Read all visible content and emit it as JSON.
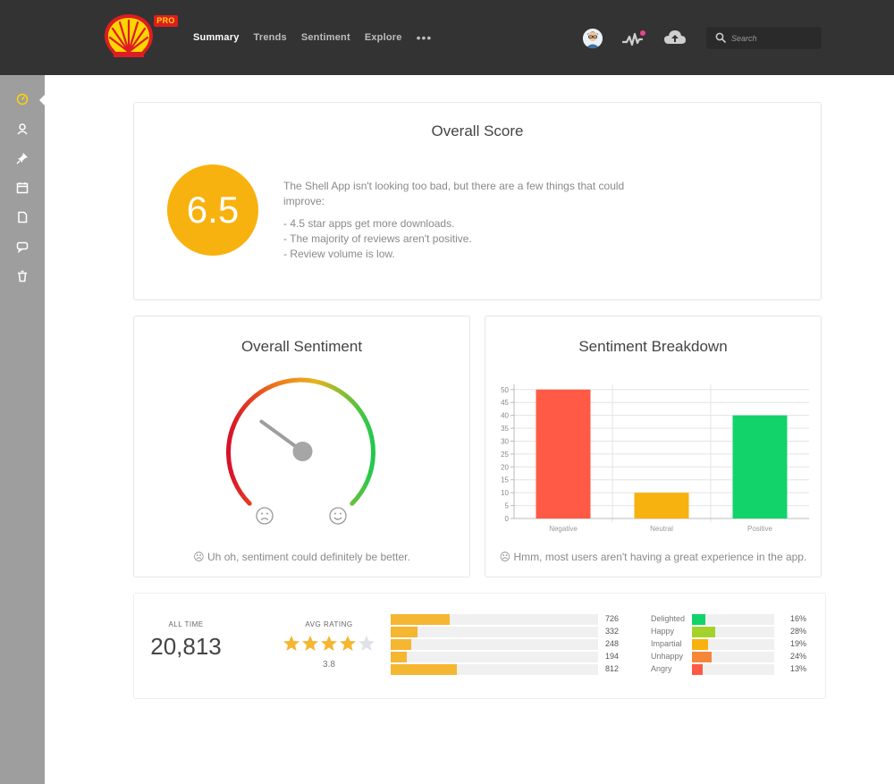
{
  "header": {
    "pro_badge": "PRO",
    "nav": [
      {
        "label": "Summary",
        "active": true
      },
      {
        "label": "Trends",
        "active": false
      },
      {
        "label": "Sentiment",
        "active": false
      },
      {
        "label": "Explore",
        "active": false
      }
    ],
    "more_label": "•••",
    "search_placeholder": "Search",
    "notification_color": "#e84393"
  },
  "sidebar": {
    "items": [
      "gauge-icon",
      "user-icon",
      "pin-icon",
      "calendar-icon",
      "document-icon",
      "chat-icon",
      "trash-icon"
    ],
    "active_index": 0,
    "active_color": "#ffd500"
  },
  "overall_score": {
    "title": "Overall Score",
    "score": "6.5",
    "summary": "The Shell App isn't looking too bad, but there are a few things that could improve:",
    "points": [
      "- 4.5 star apps get more downloads.",
      "- The majority of reviews aren't positive.",
      "- Review volume is low."
    ]
  },
  "overall_sentiment": {
    "title": "Overall Sentiment",
    "gauge_level": 0.3,
    "note": "☹ Uh oh, sentiment could definitely be better."
  },
  "sentiment_breakdown": {
    "title": "Sentiment Breakdown",
    "note": "☹ Hmm, most users aren't having a great experience in the app."
  },
  "chart_data": {
    "type": "bar",
    "categories": [
      "Negative",
      "Neutral",
      "Positive"
    ],
    "values": [
      50,
      10,
      40
    ],
    "colors": [
      "#ff5a45",
      "#f8b20f",
      "#12d36a"
    ],
    "yticks": [
      0,
      5,
      10,
      15,
      20,
      25,
      30,
      35,
      40,
      45,
      50
    ],
    "ylim": [
      0,
      52
    ],
    "grid": true
  },
  "stats": {
    "all_time_label": "ALL TIME",
    "all_time_value": "20,813",
    "avg_rating_label": "AVG RATING",
    "avg_rating_value": "3.8",
    "star_rating": 3.8,
    "rating_bars": [
      {
        "count": "726",
        "value": 726
      },
      {
        "count": "332",
        "value": 332
      },
      {
        "count": "248",
        "value": 248
      },
      {
        "count": "194",
        "value": 194
      },
      {
        "count": "812",
        "value": 812
      }
    ],
    "rating_max": 2550,
    "emotions": [
      {
        "label": "Delighted",
        "pct": "16%",
        "value": 16,
        "color": "#12d36a"
      },
      {
        "label": "Happy",
        "pct": "28%",
        "value": 28,
        "color": "#a4d22c"
      },
      {
        "label": "Impartial",
        "pct": "19%",
        "value": 19,
        "color": "#f8b20f"
      },
      {
        "label": "Unhappy",
        "pct": "24%",
        "value": 24,
        "color": "#f5873a"
      },
      {
        "label": "Angry",
        "pct": "13%",
        "value": 13,
        "color": "#ff5a45"
      }
    ],
    "emotion_max": 100
  }
}
